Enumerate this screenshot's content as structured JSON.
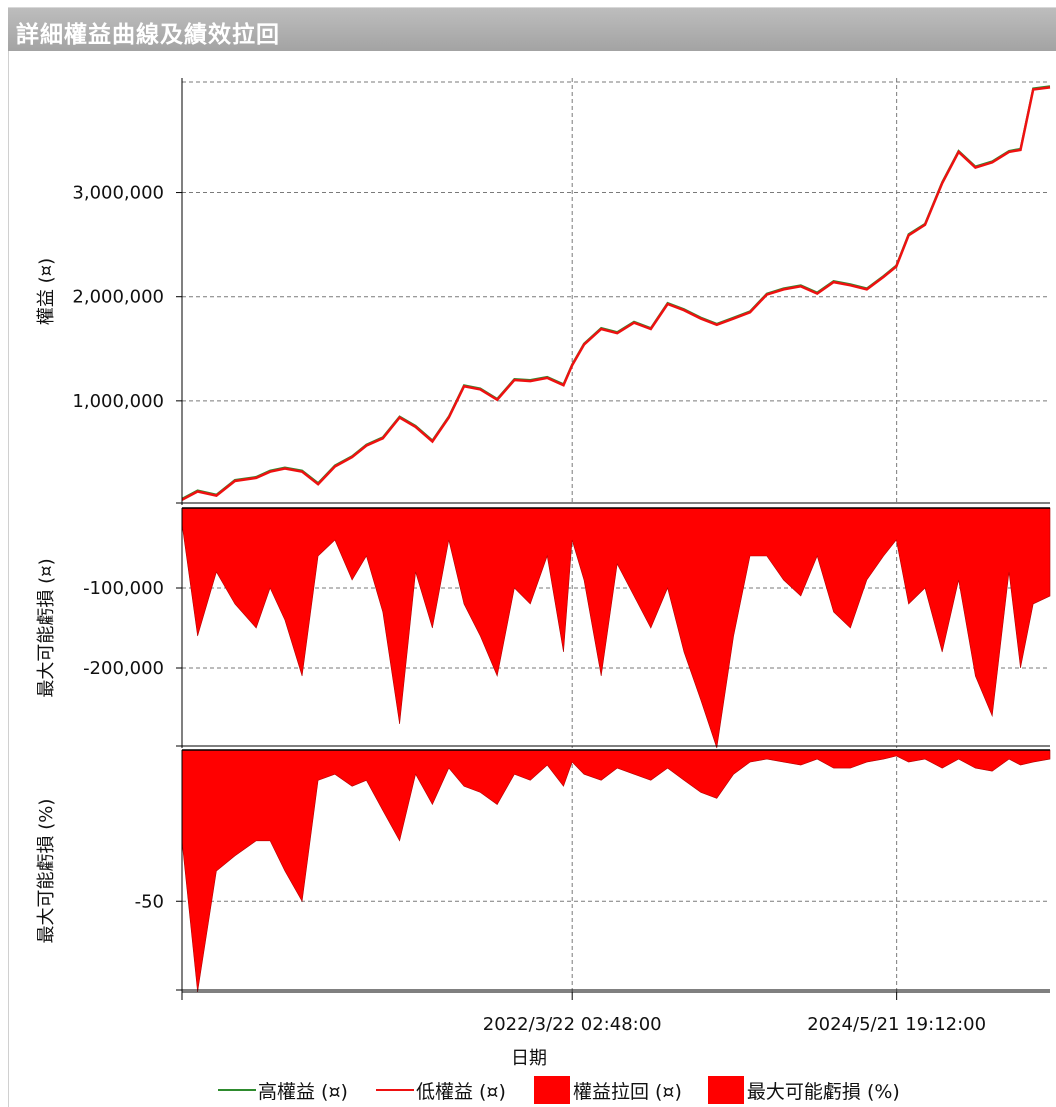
{
  "window": {
    "title": "詳細權益曲線及績效拉回"
  },
  "colors": {
    "high_equity": "#2e8b2e",
    "low_equity": "#ee1111",
    "drawdown_fill": "#ff0000",
    "grid": "#7a7a7a"
  },
  "chart_data": [
    {
      "type": "line",
      "panel": "equity",
      "ylabel": "權益 (¤)",
      "yticks": [
        1000000,
        2000000,
        3000000
      ],
      "ytick_labels": [
        "1,000,000",
        "2,000,000",
        "3,000,000"
      ],
      "ylim": [
        0,
        4100000
      ],
      "x": [
        "2019/8/13",
        "2019/9/20",
        "2019/11/5",
        "2019/12/20",
        "2020/2/10",
        "2020/3/15",
        "2020/4/20",
        "2020/6/1",
        "2020/7/10",
        "2020/8/20",
        "2020/10/1",
        "2020/11/5",
        "2020/12/15",
        "2021/1/25",
        "2021/3/5",
        "2021/4/15",
        "2021/5/25",
        "2021/7/1",
        "2021/8/10",
        "2021/9/20",
        "2021/11/1",
        "2021/12/10",
        "2022/1/20",
        "2022/3/1",
        "2022/3/22",
        "2022/4/20",
        "2022/6/1",
        "2022/7/10",
        "2022/8/20",
        "2022/9/30",
        "2022/11/10",
        "2022/12/20",
        "2023/1/30",
        "2023/3/10",
        "2023/4/20",
        "2023/5/30",
        "2023/7/10",
        "2023/8/20",
        "2023/10/1",
        "2023/11/10",
        "2023/12/20",
        "2024/1/30",
        "2024/3/10",
        "2024/4/20",
        "2024/5/21",
        "2024/6/20",
        "2024/7/30",
        "2024/9/10",
        "2024/10/20",
        "2024/11/30",
        "2025/1/10",
        "2025/2/20",
        "2025/3/20",
        "2025/4/20",
        "2025/5/31"
      ],
      "series": [
        {
          "name": "高權益 (¤)",
          "values": [
            60000,
            140000,
            100000,
            240000,
            270000,
            330000,
            360000,
            330000,
            210000,
            380000,
            470000,
            580000,
            650000,
            850000,
            760000,
            620000,
            850000,
            1150000,
            1120000,
            1020000,
            1210000,
            1200000,
            1230000,
            1160000,
            1350000,
            1550000,
            1700000,
            1660000,
            1760000,
            1700000,
            1940000,
            1880000,
            1800000,
            1740000,
            1800000,
            1860000,
            2030000,
            2080000,
            2110000,
            2040000,
            2150000,
            2120000,
            2080000,
            2200000,
            2300000,
            2600000,
            2700000,
            3100000,
            3400000,
            3250000,
            3300000,
            3400000,
            3420000,
            4000000,
            4020000
          ]
        },
        {
          "name": "低權益 (¤)",
          "values": [
            50000,
            130000,
            90000,
            230000,
            260000,
            320000,
            350000,
            320000,
            200000,
            370000,
            460000,
            570000,
            640000,
            840000,
            750000,
            610000,
            840000,
            1140000,
            1110000,
            1010000,
            1200000,
            1190000,
            1220000,
            1150000,
            1340000,
            1540000,
            1690000,
            1650000,
            1750000,
            1690000,
            1930000,
            1870000,
            1790000,
            1730000,
            1790000,
            1850000,
            2020000,
            2070000,
            2100000,
            2030000,
            2140000,
            2110000,
            2070000,
            2190000,
            2290000,
            2590000,
            2690000,
            3090000,
            3390000,
            3240000,
            3290000,
            3390000,
            3410000,
            3990000,
            4010000
          ]
        }
      ]
    },
    {
      "type": "area",
      "panel": "drawdown_abs",
      "ylabel": "最大可能虧損 (¤)",
      "yticks": [
        -100000,
        -200000
      ],
      "ytick_labels": [
        "-100,000",
        "-200,000"
      ],
      "ylim": [
        -300000,
        0
      ],
      "x": [
        "2019/8/13",
        "2019/9/20",
        "2019/11/5",
        "2019/12/20",
        "2020/2/10",
        "2020/3/15",
        "2020/4/20",
        "2020/6/1",
        "2020/7/10",
        "2020/8/20",
        "2020/10/1",
        "2020/11/5",
        "2020/12/15",
        "2021/1/25",
        "2021/3/5",
        "2021/4/15",
        "2021/5/25",
        "2021/7/1",
        "2021/8/10",
        "2021/9/20",
        "2021/11/1",
        "2021/12/10",
        "2022/1/20",
        "2022/3/1",
        "2022/3/22",
        "2022/4/20",
        "2022/6/1",
        "2022/7/10",
        "2022/8/20",
        "2022/9/30",
        "2022/11/10",
        "2022/12/20",
        "2023/1/30",
        "2023/3/10",
        "2023/4/20",
        "2023/5/30",
        "2023/7/10",
        "2023/8/20",
        "2023/10/1",
        "2023/11/10",
        "2023/12/20",
        "2024/1/30",
        "2024/3/10",
        "2024/4/20",
        "2024/5/21",
        "2024/6/20",
        "2024/7/30",
        "2024/9/10",
        "2024/10/20",
        "2024/11/30",
        "2025/1/10",
        "2025/2/20",
        "2025/3/20",
        "2025/4/20",
        "2025/5/31"
      ],
      "series": [
        {
          "name": "權益拉回 (¤)",
          "values": [
            -20000,
            -160000,
            -80000,
            -120000,
            -150000,
            -100000,
            -140000,
            -210000,
            -60000,
            -40000,
            -90000,
            -60000,
            -130000,
            -270000,
            -80000,
            -150000,
            -40000,
            -120000,
            -160000,
            -210000,
            -100000,
            -120000,
            -60000,
            -180000,
            -40000,
            -90000,
            -210000,
            -70000,
            -110000,
            -150000,
            -100000,
            -180000,
            -240000,
            -300000,
            -160000,
            -60000,
            -60000,
            -90000,
            -110000,
            -60000,
            -130000,
            -150000,
            -90000,
            -60000,
            -40000,
            -120000,
            -100000,
            -180000,
            -90000,
            -210000,
            -260000,
            -80000,
            -200000,
            -120000,
            -110000
          ]
        }
      ]
    },
    {
      "type": "area",
      "panel": "drawdown_pct",
      "ylabel": "最大可能虧損 (%)",
      "yticks": [
        -50
      ],
      "ytick_labels": [
        "-50"
      ],
      "ylim": [
        -80,
        0
      ],
      "x": [
        "2019/8/13",
        "2019/9/20",
        "2019/11/5",
        "2019/12/20",
        "2020/2/10",
        "2020/3/15",
        "2020/4/20",
        "2020/6/1",
        "2020/7/10",
        "2020/8/20",
        "2020/10/1",
        "2020/11/5",
        "2020/12/15",
        "2021/1/25",
        "2021/3/5",
        "2021/4/15",
        "2021/5/25",
        "2021/7/1",
        "2021/8/10",
        "2021/9/20",
        "2021/11/1",
        "2021/12/10",
        "2022/1/20",
        "2022/3/1",
        "2022/3/22",
        "2022/4/20",
        "2022/6/1",
        "2022/7/10",
        "2022/8/20",
        "2022/9/30",
        "2022/11/10",
        "2022/12/20",
        "2023/1/30",
        "2023/3/10",
        "2023/4/20",
        "2023/5/30",
        "2023/7/10",
        "2023/8/20",
        "2023/10/1",
        "2023/11/10",
        "2023/12/20",
        "2024/1/30",
        "2024/3/10",
        "2024/4/20",
        "2024/5/21",
        "2024/6/20",
        "2024/7/30",
        "2024/9/10",
        "2024/10/20",
        "2024/11/30",
        "2025/1/10",
        "2025/2/20",
        "2025/3/20",
        "2025/4/20",
        "2025/5/31"
      ],
      "series": [
        {
          "name": "最大可能虧損 (%)",
          "values": [
            -30,
            -80,
            -40,
            -35,
            -30,
            -30,
            -40,
            -50,
            -10,
            -8,
            -12,
            -10,
            -20,
            -30,
            -8,
            -18,
            -6,
            -12,
            -14,
            -18,
            -8,
            -10,
            -5,
            -12,
            -4,
            -8,
            -10,
            -6,
            -8,
            -10,
            -6,
            -10,
            -14,
            -16,
            -8,
            -4,
            -3,
            -4,
            -5,
            -3,
            -6,
            -6,
            -4,
            -3,
            -2,
            -4,
            -3,
            -6,
            -3,
            -6,
            -7,
            -3,
            -5,
            -4,
            -3
          ]
        }
      ]
    }
  ],
  "x_axis": {
    "label": "日期",
    "tick_labels": [
      "2022/3/22 02:48:00",
      "2024/5/21 19:12:00"
    ]
  },
  "legend": {
    "items": [
      {
        "label": "高權益 (¤)",
        "kind": "line",
        "color": "#2e8b2e"
      },
      {
        "label": "低權益 (¤)",
        "kind": "line",
        "color": "#ee1111"
      },
      {
        "label": "權益拉回 (¤)",
        "kind": "area",
        "color": "#ff0000"
      },
      {
        "label": "最大可能虧損 (%)",
        "kind": "area",
        "color": "#ff0000"
      }
    ]
  }
}
